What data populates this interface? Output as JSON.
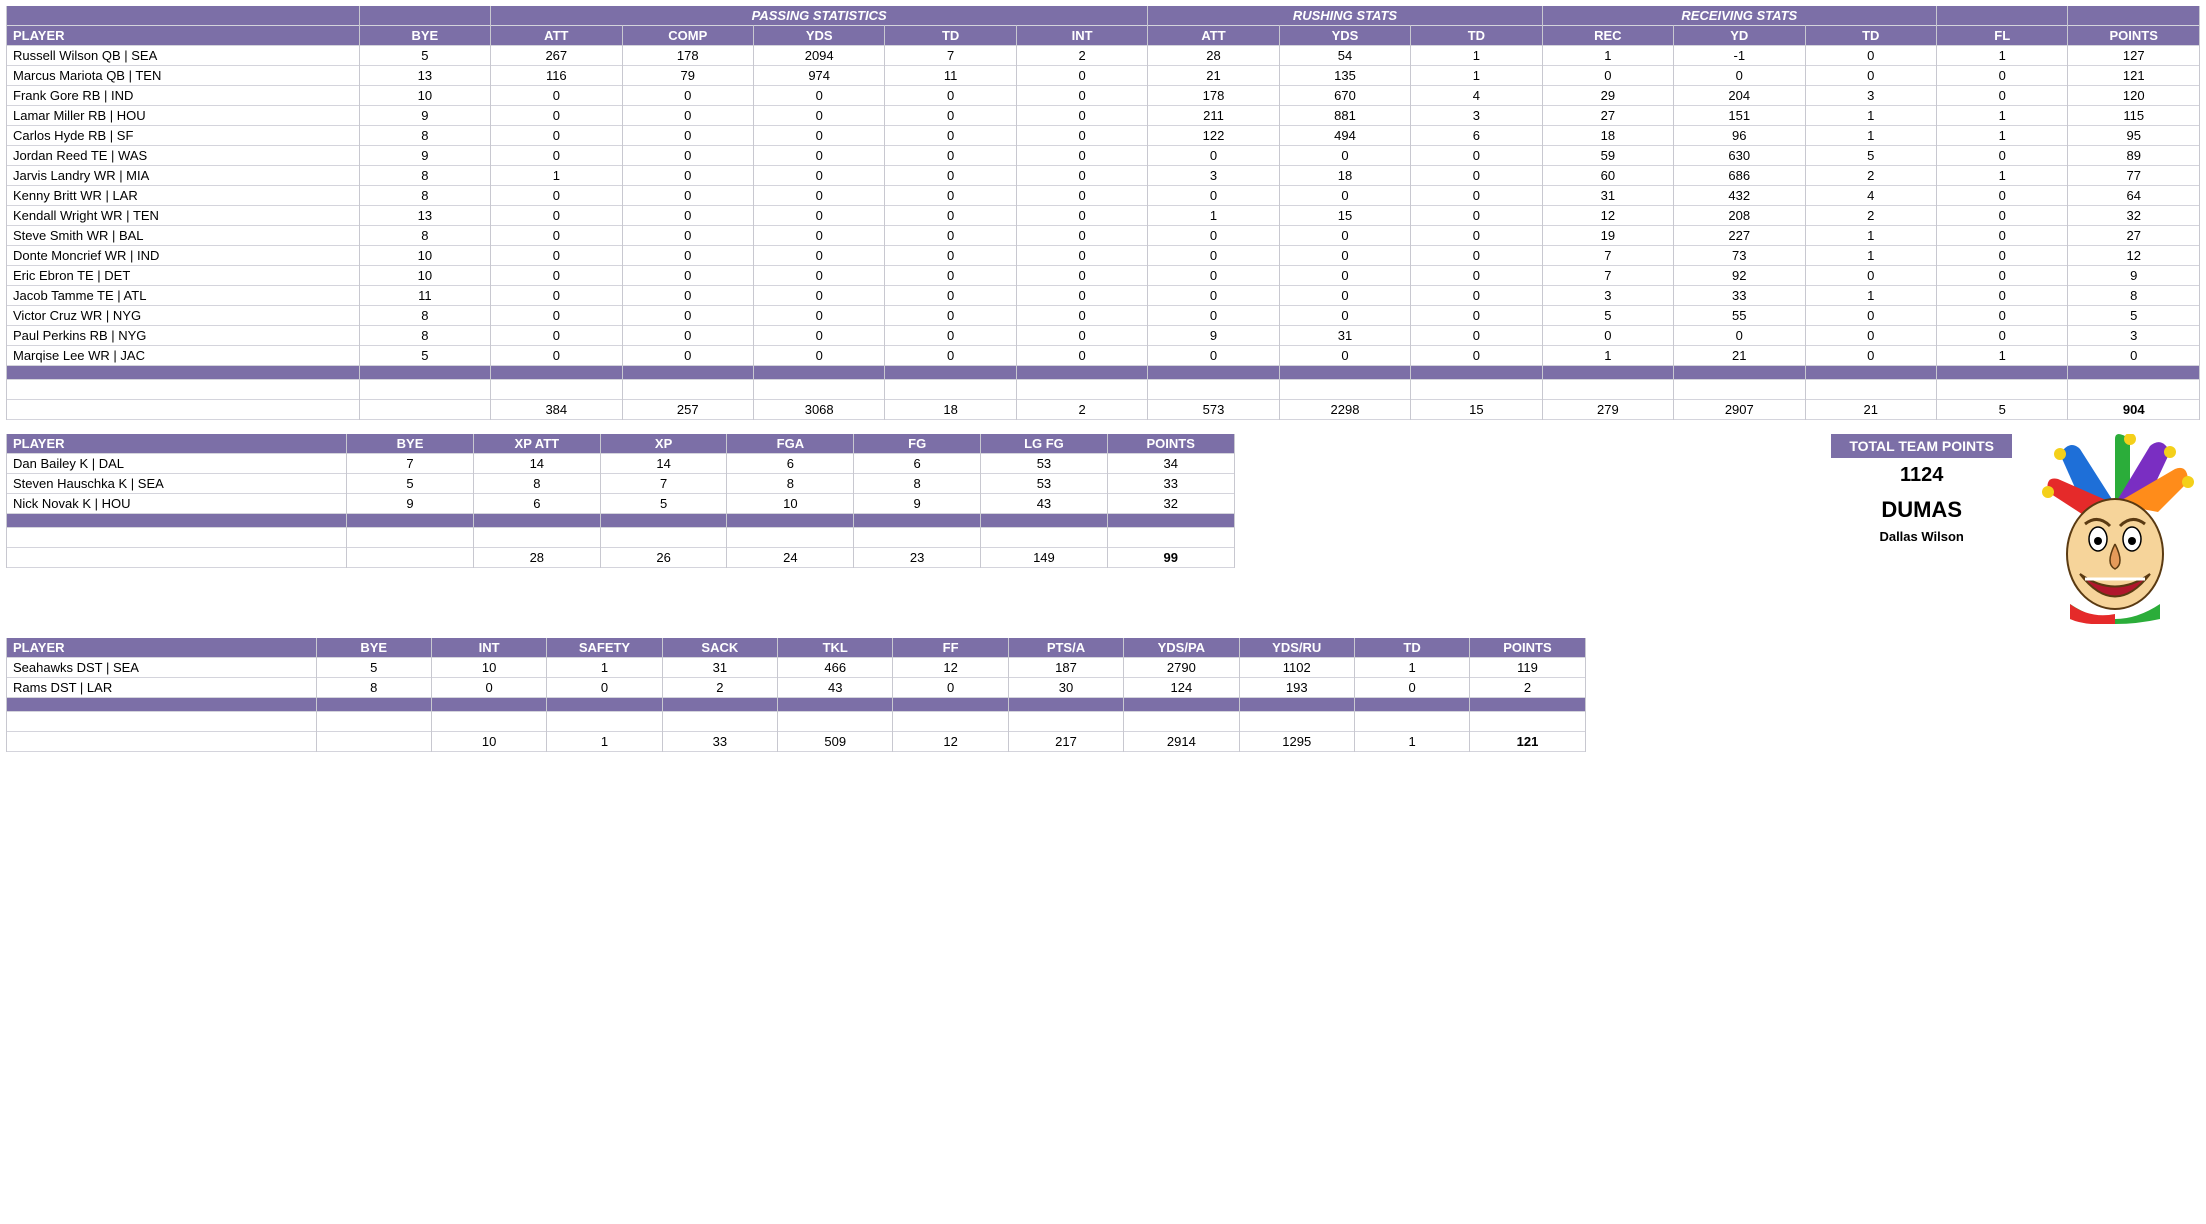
{
  "colors": {
    "header_bg": "#7c6fa7",
    "header_fg": "#ffffff",
    "grid": "#d4d4dc"
  },
  "offense": {
    "group_headers": {
      "passing": "PASSING STATISTICS",
      "rushing": "RUSHING STATS",
      "receiving": "RECEIVING STATS"
    },
    "columns": [
      "PLAYER",
      "BYE",
      "ATT",
      "COMP",
      "YDS",
      "TD",
      "INT",
      "ATT",
      "YDS",
      "TD",
      "REC",
      "YD",
      "TD",
      "FL",
      "POINTS"
    ],
    "rows": [
      [
        "Russell Wilson QB | SEA",
        "5",
        "267",
        "178",
        "2094",
        "7",
        "2",
        "28",
        "54",
        "1",
        "1",
        "-1",
        "0",
        "1",
        "127"
      ],
      [
        "Marcus Mariota QB | TEN",
        "13",
        "116",
        "79",
        "974",
        "11",
        "0",
        "21",
        "135",
        "1",
        "0",
        "0",
        "0",
        "0",
        "121"
      ],
      [
        "Frank Gore RB | IND",
        "10",
        "0",
        "0",
        "0",
        "0",
        "0",
        "178",
        "670",
        "4",
        "29",
        "204",
        "3",
        "0",
        "120"
      ],
      [
        "Lamar Miller RB | HOU",
        "9",
        "0",
        "0",
        "0",
        "0",
        "0",
        "211",
        "881",
        "3",
        "27",
        "151",
        "1",
        "1",
        "115"
      ],
      [
        "Carlos Hyde RB | SF",
        "8",
        "0",
        "0",
        "0",
        "0",
        "0",
        "122",
        "494",
        "6",
        "18",
        "96",
        "1",
        "1",
        "95"
      ],
      [
        "Jordan Reed TE | WAS",
        "9",
        "0",
        "0",
        "0",
        "0",
        "0",
        "0",
        "0",
        "0",
        "59",
        "630",
        "5",
        "0",
        "89"
      ],
      [
        "Jarvis Landry WR | MIA",
        "8",
        "1",
        "0",
        "0",
        "0",
        "0",
        "3",
        "18",
        "0",
        "60",
        "686",
        "2",
        "1",
        "77"
      ],
      [
        "Kenny Britt WR | LAR",
        "8",
        "0",
        "0",
        "0",
        "0",
        "0",
        "0",
        "0",
        "0",
        "31",
        "432",
        "4",
        "0",
        "64"
      ],
      [
        "Kendall Wright WR | TEN",
        "13",
        "0",
        "0",
        "0",
        "0",
        "0",
        "1",
        "15",
        "0",
        "12",
        "208",
        "2",
        "0",
        "32"
      ],
      [
        "Steve Smith WR | BAL",
        "8",
        "0",
        "0",
        "0",
        "0",
        "0",
        "0",
        "0",
        "0",
        "19",
        "227",
        "1",
        "0",
        "27"
      ],
      [
        "Donte Moncrief WR | IND",
        "10",
        "0",
        "0",
        "0",
        "0",
        "0",
        "0",
        "0",
        "0",
        "7",
        "73",
        "1",
        "0",
        "12"
      ],
      [
        "Eric Ebron TE | DET",
        "10",
        "0",
        "0",
        "0",
        "0",
        "0",
        "0",
        "0",
        "0",
        "7",
        "92",
        "0",
        "0",
        "9"
      ],
      [
        "Jacob Tamme TE | ATL",
        "11",
        "0",
        "0",
        "0",
        "0",
        "0",
        "0",
        "0",
        "0",
        "3",
        "33",
        "1",
        "0",
        "8"
      ],
      [
        "Victor Cruz WR | NYG",
        "8",
        "0",
        "0",
        "0",
        "0",
        "0",
        "0",
        "0",
        "0",
        "5",
        "55",
        "0",
        "0",
        "5"
      ],
      [
        "Paul Perkins RB | NYG",
        "8",
        "0",
        "0",
        "0",
        "0",
        "0",
        "9",
        "31",
        "0",
        "0",
        "0",
        "0",
        "0",
        "3"
      ],
      [
        "Marqise Lee WR | JAC",
        "5",
        "0",
        "0",
        "0",
        "0",
        "0",
        "0",
        "0",
        "0",
        "1",
        "21",
        "0",
        "1",
        "0"
      ]
    ],
    "totals": [
      "",
      "",
      "384",
      "257",
      "3068",
      "18",
      "2",
      "573",
      "2298",
      "15",
      "279",
      "2907",
      "21",
      "5",
      "904"
    ]
  },
  "kicking": {
    "columns": [
      "PLAYER",
      "BYE",
      "XP ATT",
      "XP",
      "FGA",
      "FG",
      "LG FG",
      "POINTS"
    ],
    "rows": [
      [
        "Dan Bailey K | DAL",
        "7",
        "14",
        "14",
        "6",
        "6",
        "53",
        "34"
      ],
      [
        "Steven Hauschka K | SEA",
        "5",
        "8",
        "7",
        "8",
        "8",
        "53",
        "33"
      ],
      [
        "Nick Novak K | HOU",
        "9",
        "6",
        "5",
        "10",
        "9",
        "43",
        "32"
      ]
    ],
    "totals": [
      "",
      "",
      "28",
      "26",
      "24",
      "23",
      "149",
      "99"
    ]
  },
  "defense": {
    "columns": [
      "PLAYER",
      "BYE",
      "INT",
      "SAFETY",
      "SACK",
      "TKL",
      "FF",
      "PTS/A",
      "YDS/PA",
      "YDS/RU",
      "TD",
      "POINTS"
    ],
    "rows": [
      [
        "Seahawks DST | SEA",
        "5",
        "10",
        "1",
        "31",
        "466",
        "12",
        "187",
        "2790",
        "1102",
        "1",
        "119"
      ],
      [
        "Rams DST | LAR",
        "8",
        "0",
        "0",
        "2",
        "43",
        "0",
        "30",
        "124",
        "193",
        "0",
        "2"
      ]
    ],
    "totals": [
      "",
      "",
      "10",
      "1",
      "33",
      "509",
      "12",
      "217",
      "2914",
      "1295",
      "1",
      "121"
    ]
  },
  "team": {
    "header": "TOTAL TEAM POINTS",
    "points": "1124",
    "name": "DUMAS",
    "owner": "Dallas Wilson"
  }
}
